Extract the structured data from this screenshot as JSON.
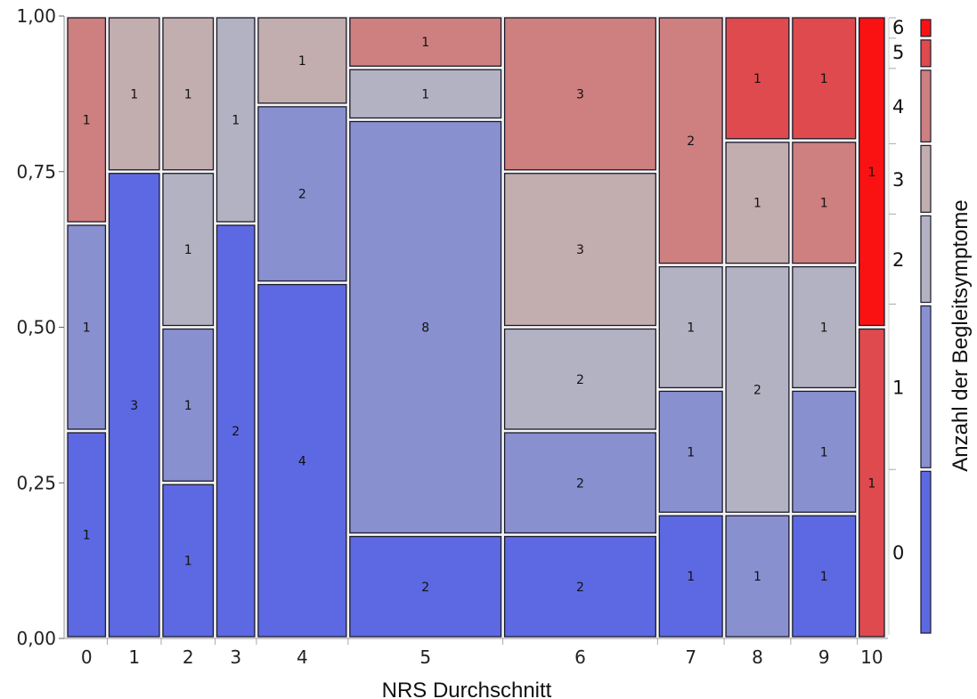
{
  "chart_data": {
    "type": "mosaic",
    "xlabel": "NRS Durchschnitt",
    "ylabel": "Anzahl der Begleitsymptome",
    "ylim": [
      0,
      1
    ],
    "y_ticks": [
      "0,00",
      "0,25",
      "0,50",
      "0,75",
      "1,00"
    ],
    "grid": false,
    "legend_position": "right",
    "legend": {
      "categories": [
        "0",
        "1",
        "2",
        "3",
        "4",
        "5",
        "6"
      ],
      "shares": [
        0.268,
        0.268,
        0.146,
        0.114,
        0.122,
        0.049,
        0.033
      ]
    },
    "category_colors": {
      "0": "#5d69e2",
      "1": "#8890d0",
      "2": "#b2b2c2",
      "3": "#c2adaf",
      "4": "#ce7f80",
      "5": "#de4a4d",
      "6": "#fa1212"
    },
    "columns": [
      {
        "x": "0",
        "width_share": 0.0244,
        "segments": [
          {
            "cat": "0",
            "count": 1
          },
          {
            "cat": "1",
            "count": 1
          },
          {
            "cat": "4",
            "count": 1
          }
        ]
      },
      {
        "x": "1",
        "width_share": 0.0325,
        "segments": [
          {
            "cat": "0",
            "count": 3
          },
          {
            "cat": "3",
            "count": 1
          }
        ]
      },
      {
        "x": "2",
        "width_share": 0.0325,
        "segments": [
          {
            "cat": "0",
            "count": 1
          },
          {
            "cat": "1",
            "count": 1
          },
          {
            "cat": "2",
            "count": 1
          },
          {
            "cat": "3",
            "count": 1
          }
        ]
      },
      {
        "x": "3",
        "width_share": 0.0244,
        "segments": [
          {
            "cat": "0",
            "count": 2
          },
          {
            "cat": "2",
            "count": 1
          }
        ]
      },
      {
        "x": "4",
        "width_share": 0.0569,
        "segments": [
          {
            "cat": "0",
            "count": 4
          },
          {
            "cat": "1",
            "count": 2
          },
          {
            "cat": "3",
            "count": 1
          }
        ]
      },
      {
        "x": "5",
        "width_share": 0.0976,
        "segments": [
          {
            "cat": "0",
            "count": 2
          },
          {
            "cat": "1",
            "count": 8
          },
          {
            "cat": "2",
            "count": 1
          },
          {
            "cat": "4",
            "count": 1
          }
        ]
      },
      {
        "x": "6",
        "width_share": 0.0976,
        "segments": [
          {
            "cat": "0",
            "count": 2
          },
          {
            "cat": "1",
            "count": 2
          },
          {
            "cat": "2",
            "count": 2
          },
          {
            "cat": "3",
            "count": 3
          },
          {
            "cat": "4",
            "count": 3
          }
        ]
      },
      {
        "x": "7",
        "width_share": 0.0407,
        "segments": [
          {
            "cat": "0",
            "count": 1
          },
          {
            "cat": "1",
            "count": 1
          },
          {
            "cat": "2",
            "count": 1
          },
          {
            "cat": "4",
            "count": 2
          }
        ]
      },
      {
        "x": "8",
        "width_share": 0.0407,
        "segments": [
          {
            "cat": "1",
            "count": 1
          },
          {
            "cat": "2",
            "count": 2
          },
          {
            "cat": "3",
            "count": 1
          },
          {
            "cat": "5",
            "count": 1
          }
        ]
      },
      {
        "x": "9",
        "width_share": 0.0407,
        "segments": [
          {
            "cat": "0",
            "count": 1
          },
          {
            "cat": "1",
            "count": 1
          },
          {
            "cat": "2",
            "count": 1
          },
          {
            "cat": "4",
            "count": 1
          },
          {
            "cat": "5",
            "count": 1
          }
        ]
      },
      {
        "x": "10",
        "width_share": 0.0163,
        "segments": [
          {
            "cat": "5",
            "count": 1
          },
          {
            "cat": "6",
            "count": 1
          }
        ]
      }
    ]
  }
}
